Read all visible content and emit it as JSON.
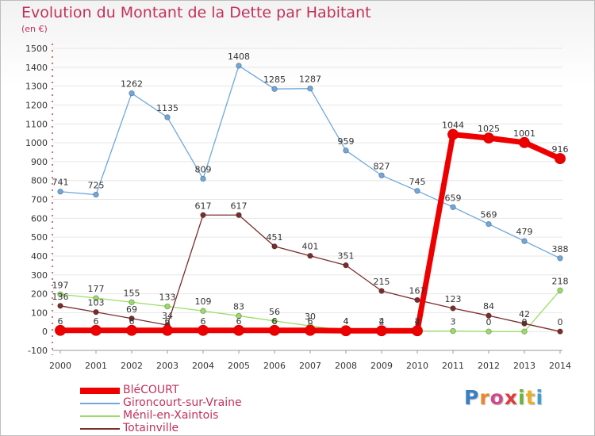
{
  "chart_data": {
    "type": "line",
    "title": "Evolution du Montant de la Dette par Habitant",
    "subtitle": "(en €)",
    "xlabel": "",
    "ylabel": "",
    "x": [
      2000,
      2001,
      2002,
      2003,
      2004,
      2005,
      2006,
      2007,
      2008,
      2009,
      2010,
      2011,
      2012,
      2013,
      2014
    ],
    "ylim": [
      -100,
      1500
    ],
    "yticks": [
      -100,
      0,
      100,
      200,
      300,
      400,
      500,
      600,
      700,
      800,
      900,
      1000,
      1100,
      1200,
      1300,
      1400,
      1500
    ],
    "grid": "horizontal",
    "legend_position": "bottom-left",
    "series": [
      {
        "name": "BléCOURT",
        "color": "#ee0000",
        "values": [
          6,
          6,
          6,
          6,
          6,
          6,
          6,
          6,
          4,
          4,
          4,
          1044,
          1025,
          1001,
          916
        ]
      },
      {
        "name": "Gironcourt-sur-Vraine",
        "color": "#6fa8dc",
        "values": [
          741,
          725,
          1262,
          1135,
          809,
          1408,
          1285,
          1287,
          959,
          827,
          745,
          659,
          569,
          479,
          388
        ]
      },
      {
        "name": "Ménil-en-Xaintois",
        "color": "#99dd66",
        "values": [
          197,
          177,
          155,
          133,
          109,
          83,
          56,
          30,
          4,
          2,
          2,
          3,
          0,
          0,
          218
        ]
      },
      {
        "name": "Totainville",
        "color": "#7b2c2c",
        "values": [
          136,
          103,
          69,
          34,
          617,
          617,
          451,
          401,
          351,
          215,
          167,
          123,
          84,
          42,
          0
        ]
      }
    ]
  },
  "logo": {
    "letters": [
      "P",
      "r",
      "o",
      "x",
      "i",
      "t",
      "i"
    ]
  }
}
